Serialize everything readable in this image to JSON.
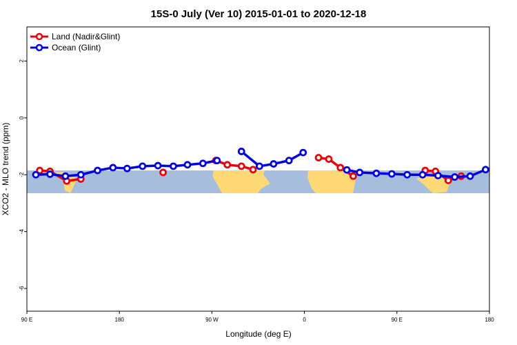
{
  "chart_data": {
    "type": "line",
    "title": "15S-0 July (Ver 10)   2015-01-01 to 2020-12-18",
    "xlabel": "Longitude (deg E)",
    "ylabel": "XCO2 - MLO trend (ppm)",
    "xlim": [
      90,
      450
    ],
    "ylim": [
      -6.8,
      3.2
    ],
    "x_ticks": [
      {
        "value": 90,
        "label": "90 E"
      },
      {
        "value": 162,
        "label": "180"
      },
      {
        "value": 234,
        "label": "90 W"
      },
      {
        "value": 306,
        "label": "0"
      },
      {
        "value": 378,
        "label": "90 E"
      },
      {
        "value": 450,
        "label": "180"
      }
    ],
    "y_ticks": [
      {
        "value": 2,
        "label": "2"
      },
      {
        "value": 0,
        "label": "0"
      },
      {
        "value": -2,
        "label": "-2"
      },
      {
        "value": -4,
        "label": "-4"
      },
      {
        "value": -6,
        "label": "-6"
      }
    ],
    "legend_position": "top-left",
    "map_band": {
      "y_top": -1.85,
      "y_bottom": -2.65,
      "ocean_color": "#a6bddb",
      "land_color": "#fed976"
    },
    "series": [
      {
        "name": "Land (Nadir&Glint)",
        "color": "#e8000b",
        "segments": [
          {
            "x": [
              100,
              108,
              121,
              132
            ],
            "y": [
              -1.85,
              -1.88,
              -2.22,
              -2.15
            ]
          },
          {
            "x": [
              196
            ],
            "y": [
              -1.92
            ]
          },
          {
            "x": [
              237,
              246,
              257,
              266
            ],
            "y": [
              -1.5,
              -1.65,
              -1.7,
              -1.82
            ]
          },
          {
            "x": [
              317,
              325,
              334,
              344
            ],
            "y": [
              -1.4,
              -1.45,
              -1.75,
              -2.05
            ]
          },
          {
            "x": [
              400,
              408,
              418,
              428
            ],
            "y": [
              -1.85,
              -1.88,
              -2.2,
              -2.05
            ]
          }
        ]
      },
      {
        "name": "Ocean (Glint)",
        "color": "#0000e0",
        "segments": [
          {
            "x": [
              97,
              108,
              120,
              132,
              145,
              157,
              168,
              180,
              192,
              204,
              215,
              227,
              238
            ],
            "y": [
              -2.0,
              -1.98,
              -2.05,
              -2.0,
              -1.85,
              -1.75,
              -1.78,
              -1.7,
              -1.68,
              -1.7,
              -1.65,
              -1.6,
              -1.5
            ]
          },
          {
            "x": [
              257,
              271,
              282,
              294,
              305
            ],
            "y": [
              -1.18,
              -1.7,
              -1.62,
              -1.5,
              -1.22
            ]
          },
          {
            "x": [
              339,
              349,
              362,
              374,
              386,
              398,
              410,
              423,
              435,
              447,
              459
            ],
            "y": [
              -1.83,
              -1.92,
              -1.95,
              -1.97,
              -2.0,
              -2.0,
              -2.03,
              -2.08,
              -2.05,
              -1.82,
              -1.73
            ]
          }
        ]
      }
    ]
  }
}
